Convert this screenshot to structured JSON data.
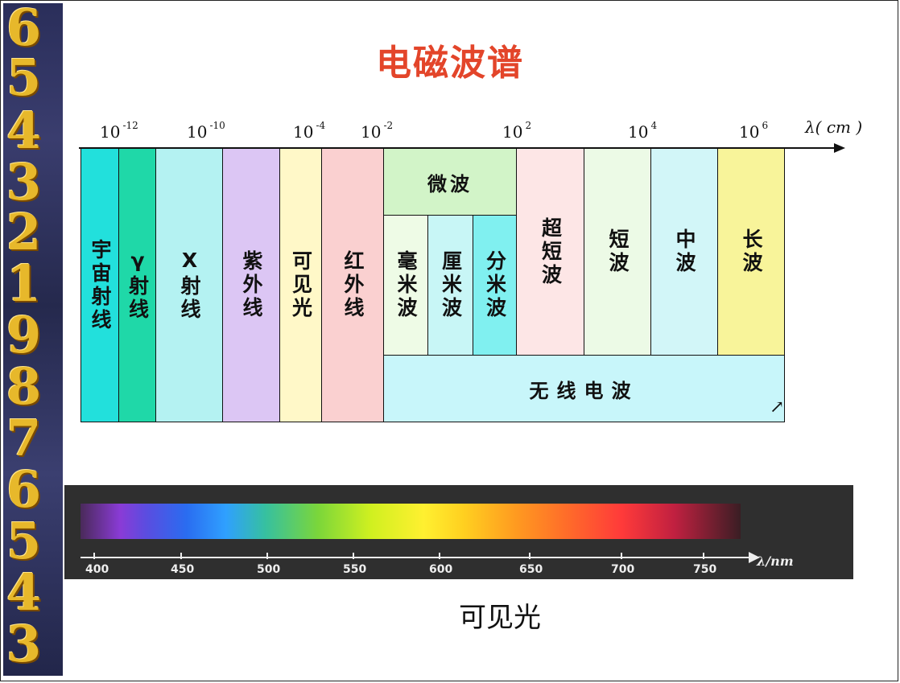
{
  "title": "电磁波谱",
  "wavelength_axis": {
    "ticks": [
      {
        "base": "10",
        "exp": "-12"
      },
      {
        "base": "10",
        "exp": "-10"
      },
      {
        "base": "10",
        "exp": "-4"
      },
      {
        "base": "10",
        "exp": "-2"
      },
      {
        "base": "10",
        "exp": "2"
      },
      {
        "base": "10",
        "exp": "4"
      },
      {
        "base": "10",
        "exp": "6"
      }
    ],
    "unit": "λ( cm )"
  },
  "bands": [
    {
      "label": "宇宙射线",
      "color": "#22e0dc"
    },
    {
      "label": "γ射线",
      "color": "#1fd8a8"
    },
    {
      "label": "X射线",
      "color": "#b4f2f2"
    },
    {
      "label": "紫外线",
      "color": "#dcc6f4"
    },
    {
      "label": "可见光",
      "color": "#fff8c8"
    },
    {
      "label": "红外线",
      "color": "#fad0d0"
    },
    {
      "label": "微波",
      "color": "#d2f4c8"
    },
    {
      "label": "毫米波",
      "color": "#eefbe6"
    },
    {
      "label": "厘米波",
      "color": "#c8f6f6"
    },
    {
      "label": "分米波",
      "color": "#80f0f0"
    },
    {
      "label": "超短波",
      "color": "#fde6e6"
    },
    {
      "label": "短波",
      "color": "#ecfae6"
    },
    {
      "label": "中波",
      "color": "#d2f6f8"
    },
    {
      "label": "长波",
      "color": "#f8f49a"
    },
    {
      "label": "无线电波",
      "color": "#c8f6fa"
    }
  ],
  "visible_spectrum": {
    "ticks": [
      "400",
      "450",
      "500",
      "550",
      "600",
      "650",
      "700",
      "750"
    ],
    "unit": "λ/nm"
  },
  "caption": "可见光",
  "sidebar_glyphs": [
    "6",
    "5",
    "4",
    "3",
    "2",
    "1",
    "9",
    "8",
    "7",
    "6",
    "5",
    "4",
    "3"
  ]
}
